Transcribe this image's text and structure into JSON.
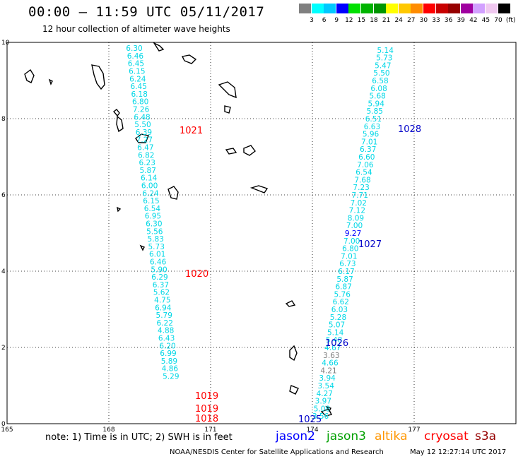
{
  "title": "00:00 – 11:59 UTC 05/11/2017",
  "subtitle": "12 hour collection of altimeter wave heights",
  "color_scale": {
    "colors": [
      "#808080",
      "#00ffff",
      "#00c8ff",
      "#0000ff",
      "#00e000",
      "#00b400",
      "#009600",
      "#ffff00",
      "#ffc800",
      "#ff8c00",
      "#ff0000",
      "#c80000",
      "#960000",
      "#a000a0",
      "#d2a0ff",
      "#f0c8f0",
      "#000000"
    ],
    "labels": [
      "3",
      "6",
      "9",
      "12",
      "15",
      "18",
      "21",
      "24",
      "27",
      "30",
      "33",
      "36",
      "39",
      "42",
      "45",
      "70",
      "(ft)"
    ]
  },
  "map": {
    "lon_range": [
      165,
      180
    ],
    "lat_range": [
      0,
      10
    ],
    "x_tick_labels": [
      "165",
      "168",
      "171",
      "174",
      "177"
    ],
    "x_tick_values": [
      165,
      168,
      171,
      174,
      177
    ],
    "y_tick_labels": [
      "0",
      "2",
      "4",
      "6",
      "8",
      "10"
    ],
    "y_tick_values": [
      0,
      2,
      4,
      6,
      8,
      10
    ],
    "grid": "dotted",
    "tracks": [
      {
        "satellite": "jason3",
        "color": "#00d7e6",
        "points": [
          {
            "lon": 168.75,
            "lat": 9.85,
            "value": "6.30"
          },
          {
            "lon": 168.78,
            "lat": 9.65,
            "value": "6.46"
          },
          {
            "lon": 168.8,
            "lat": 9.45,
            "value": "6.45"
          },
          {
            "lon": 168.83,
            "lat": 9.25,
            "value": "6.15"
          },
          {
            "lon": 168.85,
            "lat": 9.05,
            "value": "6.24"
          },
          {
            "lon": 168.88,
            "lat": 8.85,
            "value": "6.45"
          },
          {
            "lon": 168.9,
            "lat": 8.65,
            "value": "6.18"
          },
          {
            "lon": 168.93,
            "lat": 8.45,
            "value": "6.80"
          },
          {
            "lon": 168.95,
            "lat": 8.25,
            "value": "7.26"
          },
          {
            "lon": 168.98,
            "lat": 8.05,
            "value": "6.48"
          },
          {
            "lon": 169.0,
            "lat": 7.85,
            "value": "5.50"
          },
          {
            "lon": 169.03,
            "lat": 7.65,
            "value": "6.39"
          },
          {
            "lon": 169.05,
            "lat": 7.45,
            "value": "7.27"
          },
          {
            "lon": 169.08,
            "lat": 7.25,
            "value": "6.47"
          },
          {
            "lon": 169.1,
            "lat": 7.05,
            "value": "6.82"
          },
          {
            "lon": 169.13,
            "lat": 6.85,
            "value": "6.23"
          },
          {
            "lon": 169.15,
            "lat": 6.65,
            "value": "5.87"
          },
          {
            "lon": 169.18,
            "lat": 6.45,
            "value": "6.14"
          },
          {
            "lon": 169.2,
            "lat": 6.25,
            "value": "6.00"
          },
          {
            "lon": 169.23,
            "lat": 6.05,
            "value": "6.24"
          },
          {
            "lon": 169.25,
            "lat": 5.85,
            "value": "6.15"
          },
          {
            "lon": 169.28,
            "lat": 5.65,
            "value": "6.54"
          },
          {
            "lon": 169.3,
            "lat": 5.45,
            "value": "6.95"
          },
          {
            "lon": 169.33,
            "lat": 5.25,
            "value": "6.30"
          },
          {
            "lon": 169.35,
            "lat": 5.05,
            "value": "5.56"
          },
          {
            "lon": 169.38,
            "lat": 4.85,
            "value": "5.83"
          },
          {
            "lon": 169.4,
            "lat": 4.65,
            "value": "5.73"
          },
          {
            "lon": 169.43,
            "lat": 4.45,
            "value": "6.01"
          },
          {
            "lon": 169.45,
            "lat": 4.25,
            "value": "6.46"
          },
          {
            "lon": 169.48,
            "lat": 4.05,
            "value": "5.90"
          },
          {
            "lon": 169.5,
            "lat": 3.85,
            "value": "6.29"
          },
          {
            "lon": 169.53,
            "lat": 3.65,
            "value": "6.37"
          },
          {
            "lon": 169.55,
            "lat": 3.45,
            "value": "5.62"
          },
          {
            "lon": 169.58,
            "lat": 3.25,
            "value": "4.75"
          },
          {
            "lon": 169.6,
            "lat": 3.05,
            "value": "6.94"
          },
          {
            "lon": 169.63,
            "lat": 2.85,
            "value": "5.79"
          },
          {
            "lon": 169.65,
            "lat": 2.65,
            "value": "6.22"
          },
          {
            "lon": 169.68,
            "lat": 2.45,
            "value": "4.88"
          },
          {
            "lon": 169.7,
            "lat": 2.25,
            "value": "6.43"
          },
          {
            "lon": 169.73,
            "lat": 2.05,
            "value": "6.20"
          },
          {
            "lon": 169.75,
            "lat": 1.85,
            "value": "6.99"
          },
          {
            "lon": 169.78,
            "lat": 1.65,
            "value": "5.89"
          },
          {
            "lon": 169.8,
            "lat": 1.45,
            "value": "4.86"
          },
          {
            "lon": 169.83,
            "lat": 1.25,
            "value": "5.29"
          }
        ]
      },
      {
        "satellite": "jason2",
        "color": "#00d7e6",
        "points": [
          {
            "lon": 176.15,
            "lat": 9.8,
            "value": "5.14"
          },
          {
            "lon": 176.12,
            "lat": 9.6,
            "value": "5.73"
          },
          {
            "lon": 176.08,
            "lat": 9.4,
            "value": "5.47"
          },
          {
            "lon": 176.04,
            "lat": 9.2,
            "value": "5.50"
          },
          {
            "lon": 176.0,
            "lat": 9.0,
            "value": "6.58"
          },
          {
            "lon": 175.96,
            "lat": 8.8,
            "value": "6.08"
          },
          {
            "lon": 175.92,
            "lat": 8.6,
            "value": "5.68"
          },
          {
            "lon": 175.88,
            "lat": 8.4,
            "value": "5.94"
          },
          {
            "lon": 175.84,
            "lat": 8.2,
            "value": "5.85"
          },
          {
            "lon": 175.8,
            "lat": 8.0,
            "value": "6.51"
          },
          {
            "lon": 175.76,
            "lat": 7.8,
            "value": "6.63"
          },
          {
            "lon": 175.72,
            "lat": 7.6,
            "value": "5.96"
          },
          {
            "lon": 175.68,
            "lat": 7.4,
            "value": "7.01"
          },
          {
            "lon": 175.64,
            "lat": 7.2,
            "value": "6.37"
          },
          {
            "lon": 175.6,
            "lat": 7.0,
            "value": "6.60"
          },
          {
            "lon": 175.56,
            "lat": 6.8,
            "value": "7.06"
          },
          {
            "lon": 175.52,
            "lat": 6.6,
            "value": "6.54"
          },
          {
            "lon": 175.48,
            "lat": 6.4,
            "value": "7.68"
          },
          {
            "lon": 175.44,
            "lat": 6.2,
            "value": "7.23"
          },
          {
            "lon": 175.4,
            "lat": 6.0,
            "value": "7.71"
          },
          {
            "lon": 175.36,
            "lat": 5.8,
            "value": "7.02"
          },
          {
            "lon": 175.32,
            "lat": 5.6,
            "value": "7.12"
          },
          {
            "lon": 175.28,
            "lat": 5.4,
            "value": "8.09"
          },
          {
            "lon": 175.24,
            "lat": 5.2,
            "value": "7.00"
          },
          {
            "lon": 175.2,
            "lat": 5.0,
            "value": "9.27"
          },
          {
            "lon": 175.16,
            "lat": 4.8,
            "value": "7.00"
          },
          {
            "lon": 175.12,
            "lat": 4.6,
            "value": "6.80"
          },
          {
            "lon": 175.08,
            "lat": 4.4,
            "value": "7.01"
          },
          {
            "lon": 175.04,
            "lat": 4.2,
            "value": "6.73"
          },
          {
            "lon": 175.0,
            "lat": 4.0,
            "value": "6.17"
          },
          {
            "lon": 174.96,
            "lat": 3.8,
            "value": "5.87"
          },
          {
            "lon": 174.92,
            "lat": 3.6,
            "value": "6.87"
          },
          {
            "lon": 174.88,
            "lat": 3.4,
            "value": "5.76"
          },
          {
            "lon": 174.84,
            "lat": 3.2,
            "value": "6.62"
          },
          {
            "lon": 174.8,
            "lat": 3.0,
            "value": "6.03"
          },
          {
            "lon": 174.76,
            "lat": 2.8,
            "value": "5.28"
          },
          {
            "lon": 174.72,
            "lat": 2.6,
            "value": "5.07"
          },
          {
            "lon": 174.68,
            "lat": 2.4,
            "value": "5.14"
          },
          {
            "lon": 174.64,
            "lat": 2.2,
            "value": "5.48"
          },
          {
            "lon": 174.6,
            "lat": 2.0,
            "value": "4.67"
          },
          {
            "lon": 174.56,
            "lat": 1.8,
            "value": "3.63"
          },
          {
            "lon": 174.52,
            "lat": 1.6,
            "value": "4.66"
          },
          {
            "lon": 174.48,
            "lat": 1.4,
            "value": "4.21"
          },
          {
            "lon": 174.44,
            "lat": 1.2,
            "value": "3.94"
          },
          {
            "lon": 174.4,
            "lat": 1.0,
            "value": "3.54"
          },
          {
            "lon": 174.36,
            "lat": 0.8,
            "value": "4.27"
          },
          {
            "lon": 174.32,
            "lat": 0.6,
            "value": "3.97"
          },
          {
            "lon": 174.28,
            "lat": 0.4,
            "value": "5.08"
          },
          {
            "lon": 174.24,
            "lat": 0.2,
            "value": "3.56"
          }
        ]
      }
    ],
    "pressure_labels": [
      {
        "text": "1021",
        "color": "#ff0000"
      },
      {
        "text": "1020",
        "color": "#ff0000"
      },
      {
        "text": "1019",
        "color": "#ff0000"
      },
      {
        "text": "1019",
        "color": "#ff0000"
      },
      {
        "text": "1018",
        "color": "#ff0000"
      },
      {
        "text": "1028",
        "color": "#0000c8"
      },
      {
        "text": "1027",
        "color": "#0000c8"
      },
      {
        "text": "1026",
        "color": "#0000c8"
      },
      {
        "text": "1025",
        "color": "#0000c8"
      }
    ]
  },
  "footnote": "note:  1) Time is in UTC;  2) SWH is in feet",
  "satellites": [
    {
      "name": "jason2",
      "color": "#0000ff"
    },
    {
      "name": "jason3",
      "color": "#00a000"
    },
    {
      "name": "altika",
      "color": "#ff9600"
    },
    {
      "name": "cryosat",
      "color": "#ff0000"
    },
    {
      "name": "s3a",
      "color": "#960000"
    }
  ],
  "credit": "NOAA/NESDIS Center for Satellite Applications and Research",
  "generated": "May 12 12:27:14 UTC 2017"
}
